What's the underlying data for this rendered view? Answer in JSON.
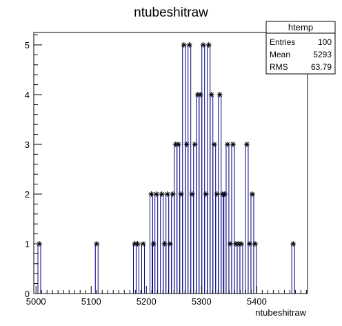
{
  "chart_data": {
    "type": "bar",
    "title": "ntubeshitraw",
    "xlabel": "ntubeshitraw",
    "ylabel": "",
    "xlim": [
      4996,
      5492
    ],
    "ylim": [
      0,
      5.25
    ],
    "x_ticks": [
      "5000",
      "5100",
      "5200",
      "5300",
      "5400"
    ],
    "y_ticks": [
      "0",
      "1",
      "2",
      "3",
      "4",
      "5"
    ],
    "bin_width": 4.96,
    "bin_centers": [
      5006,
      5110,
      5179,
      5184,
      5194,
      5209,
      5213,
      5218,
      5228,
      5233,
      5238,
      5243,
      5248,
      5253,
      5258,
      5263,
      5268,
      5273,
      5278,
      5283,
      5288,
      5293,
      5298,
      5303,
      5308,
      5313,
      5318,
      5323,
      5328,
      5333,
      5338,
      5342,
      5347,
      5352,
      5357,
      5362,
      5367,
      5372,
      5382,
      5387,
      5392,
      5397,
      5466
    ],
    "values": [
      1,
      1,
      1,
      1,
      1,
      2,
      1,
      2,
      2,
      1,
      2,
      1,
      2,
      3,
      3,
      2,
      5,
      3,
      5,
      2,
      3,
      4,
      4,
      5,
      2,
      5,
      4,
      3,
      2,
      4,
      2,
      2,
      3,
      1,
      3,
      1,
      1,
      1,
      3,
      1,
      2,
      1,
      1
    ],
    "line_color": "#000080",
    "marker": "asterisk",
    "grid": false,
    "legend": "none"
  },
  "stats_box": {
    "title": "htemp",
    "entries_label": "Entries",
    "entries_value": "100",
    "mean_label": "Mean",
    "mean_value": "5293",
    "rms_label": "RMS",
    "rms_value": "63.79"
  }
}
